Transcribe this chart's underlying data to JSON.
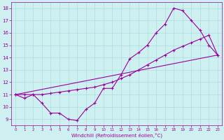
{
  "xlabel": "Windchill (Refroidissement éolien,°C)",
  "bg_color": "#cff0f0",
  "line_color": "#990099",
  "grid_color": "#aadddd",
  "x_ticks": [
    0,
    1,
    2,
    3,
    4,
    5,
    6,
    7,
    8,
    9,
    10,
    11,
    12,
    13,
    14,
    15,
    16,
    17,
    18,
    19,
    20,
    21,
    22,
    23
  ],
  "y_ticks": [
    9,
    10,
    11,
    12,
    13,
    14,
    15,
    16,
    17,
    18
  ],
  "xlim": [
    -0.5,
    23.5
  ],
  "ylim": [
    8.5,
    18.5
  ],
  "series1_x": [
    0,
    1,
    2,
    3,
    4,
    5,
    6,
    7,
    8,
    9,
    10,
    11,
    12,
    13,
    14,
    15,
    16,
    17,
    18,
    19,
    20,
    21,
    22,
    23
  ],
  "series1_y": [
    11.0,
    10.7,
    11.0,
    10.3,
    9.5,
    9.5,
    9.0,
    8.9,
    9.8,
    10.3,
    11.5,
    11.5,
    12.6,
    13.9,
    14.4,
    15.0,
    16.0,
    16.7,
    18.0,
    17.8,
    17.0,
    16.2,
    15.0,
    14.2
  ],
  "series2_x": [
    0,
    1,
    2,
    3,
    4,
    5,
    6,
    7,
    8,
    9,
    10,
    11,
    12,
    13,
    14,
    15,
    16,
    17,
    18,
    19,
    20,
    21,
    22,
    23
  ],
  "series2_y": [
    11.0,
    11.0,
    11.0,
    11.0,
    11.1,
    11.2,
    11.3,
    11.4,
    11.5,
    11.6,
    11.8,
    12.0,
    12.3,
    12.6,
    13.0,
    13.4,
    13.8,
    14.2,
    14.6,
    14.9,
    15.2,
    15.5,
    15.8,
    14.2
  ],
  "series3_x": [
    0,
    23
  ],
  "series3_y": [
    11.0,
    14.2
  ]
}
